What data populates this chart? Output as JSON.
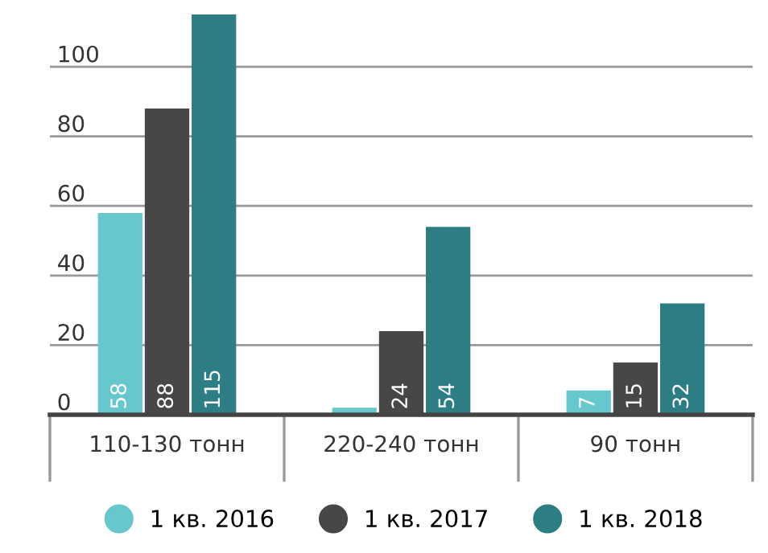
{
  "chart_data": {
    "type": "bar",
    "categories": [
      "110-130 тонн",
      "220-240 тонн",
      "90 тонн"
    ],
    "series": [
      {
        "name": "1 кв. 2016",
        "color": "#66c7cd",
        "values": [
          58,
          2,
          7
        ],
        "value_labels": [
          "58",
          null,
          "7"
        ]
      },
      {
        "name": "1 кв. 2017",
        "color": "#474747",
        "values": [
          88,
          24,
          15
        ],
        "value_labels": [
          "88",
          "24",
          "15"
        ]
      },
      {
        "name": "1 кв. 2018",
        "color": "#2d7d85",
        "values": [
          115,
          54,
          32
        ],
        "value_labels": [
          "115",
          "54",
          "32"
        ]
      }
    ],
    "ylim": [
      0,
      116
    ],
    "yticks": [
      0,
      20,
      40,
      60,
      80,
      100
    ],
    "grid": "y",
    "legend": "bottom"
  }
}
